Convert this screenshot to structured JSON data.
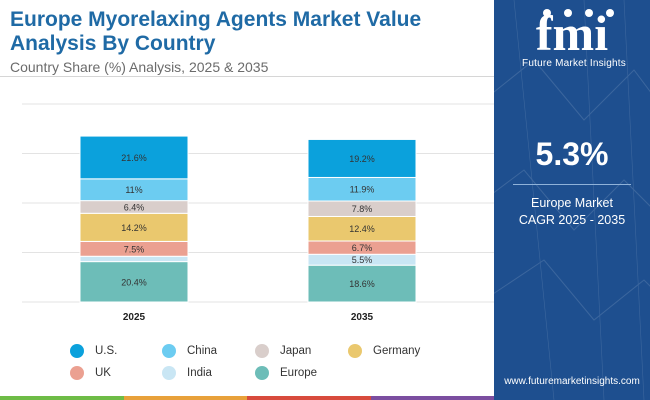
{
  "header": {
    "title_line1": "Europe Myorelaxing Agents Market Value",
    "title_line2": "Analysis By Country",
    "subtitle": "Country Share (%) Analysis, 2025 & 2035"
  },
  "chart_data": {
    "type": "bar",
    "stacked": true,
    "categories": [
      "2025",
      "2035"
    ],
    "series": [
      {
        "name": "Europe",
        "color": "#6dbdb8",
        "values": [
          20.4,
          18.6
        ],
        "labels": [
          "20.4%",
          "18.6%"
        ]
      },
      {
        "name": "India",
        "color": "#c9e6f4",
        "values": [
          2.7,
          5.5
        ],
        "labels": [
          "",
          "5.5%"
        ]
      },
      {
        "name": "UK",
        "color": "#eba091",
        "values": [
          7.5,
          6.7
        ],
        "labels": [
          "7.5%",
          "6.7%"
        ]
      },
      {
        "name": "Germany",
        "color": "#eac86e",
        "values": [
          14.2,
          12.4
        ],
        "labels": [
          "14.2%",
          "12.4%"
        ]
      },
      {
        "name": "Japan",
        "color": "#d9cecb",
        "values": [
          6.4,
          7.8
        ],
        "labels": [
          "6.4%",
          "7.8%"
        ]
      },
      {
        "name": "China",
        "color": "#6cccf1",
        "values": [
          11,
          11.9
        ],
        "labels": [
          "11%",
          "11.9%"
        ]
      },
      {
        "name": "U.S.",
        "color": "#0ba1dc",
        "values": [
          21.6,
          19.2
        ],
        "labels": [
          "21.6%",
          "19.2%"
        ]
      }
    ],
    "legend_order": [
      "U.S.",
      "China",
      "Japan",
      "Germany",
      "UK",
      "India",
      "Europe"
    ],
    "ylim": [
      0,
      100
    ],
    "grid": true,
    "legend_position": "bottom"
  },
  "sidebar": {
    "logo_text": "Future Market Insights",
    "cagr_value": "5.3%",
    "cagr_label_line1": "Europe Market",
    "cagr_label_line2": "CAGR 2025 - 2035",
    "website": "www.futuremarketinsights.com",
    "background_color": "#1e4f8f"
  },
  "bottom_rule_colors": [
    "#6ebc46",
    "#e8a13a",
    "#d84b3d",
    "#7b4ea0"
  ]
}
